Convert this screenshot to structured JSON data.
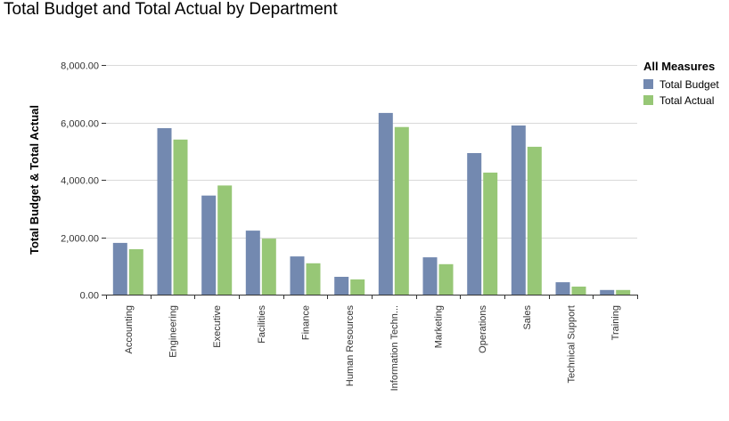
{
  "chart_data": {
    "type": "bar",
    "title": "Total Budget and Total Actual by Department",
    "xlabel": "",
    "ylabel": "Total Budget & Total Actual",
    "ylim": [
      0,
      8000
    ],
    "yticks": [
      "0.00",
      "2,000.00",
      "4,000.00",
      "6,000.00",
      "8,000.00"
    ],
    "ytick_values": [
      0,
      2000,
      4000,
      6000,
      8000
    ],
    "grid": true,
    "legend_title": "All Measures",
    "legend_position": "top-right",
    "categories": [
      "Accounting",
      "Engineering",
      "Executive",
      "Facilities",
      "Finance",
      "Human Resources",
      "Information Techn...",
      "Marketing",
      "Operations",
      "Sales",
      "Technical Support",
      "Training"
    ],
    "series": [
      {
        "name": "Total Budget",
        "color": "#7389b0",
        "values": [
          1800,
          5800,
          3450,
          2230,
          1330,
          620,
          6330,
          1300,
          4930,
          5890,
          430,
          160
        ]
      },
      {
        "name": "Total Actual",
        "color": "#97c776",
        "values": [
          1580,
          5400,
          3800,
          1950,
          1090,
          530,
          5840,
          1060,
          4250,
          5150,
          280,
          160
        ]
      }
    ]
  }
}
